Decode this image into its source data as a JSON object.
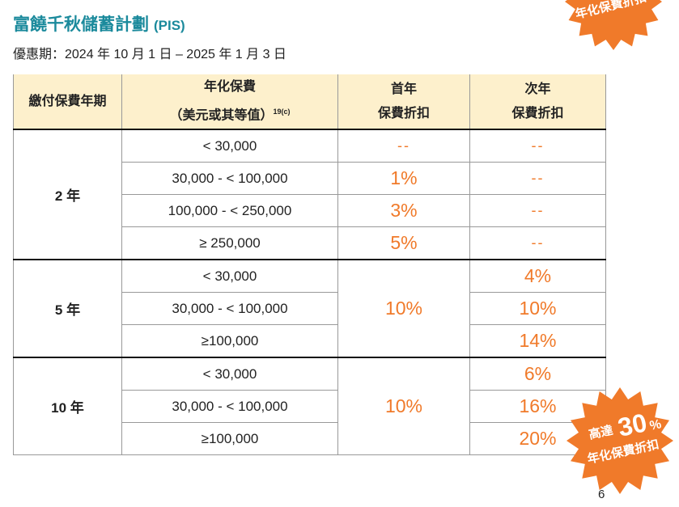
{
  "header": {
    "title": "富饒千秋儲蓄計劃",
    "title_suffix": "(PIS)",
    "subtitle": "優惠期：2024 年 10 月 1 日 – 2025 年 1 月 3 日"
  },
  "table": {
    "headers": [
      {
        "lines": [
          "繳付保費年期"
        ]
      },
      {
        "lines": [
          "年化保費",
          "（美元或其等值）"
        ],
        "note": "19(c)"
      },
      {
        "lines": [
          "首年",
          "保費折扣"
        ]
      },
      {
        "lines": [
          "次年",
          "保費折扣"
        ]
      }
    ],
    "groups": [
      {
        "term": "2 年",
        "rows": [
          {
            "premium": "< 30,000",
            "first": "--",
            "second": "--"
          },
          {
            "premium": "30,000 - < 100,000",
            "first": "1%",
            "second": "--"
          },
          {
            "premium": "100,000 - < 250,000",
            "first": "3%",
            "second": "--"
          },
          {
            "premium": "≥ 250,000",
            "first": "5%",
            "second": "--"
          }
        ]
      },
      {
        "term": "5 年",
        "first": "10%",
        "rows": [
          {
            "premium": "< 30,000",
            "second": "4%"
          },
          {
            "premium": "30,000 - < 100,000",
            "second": "10%"
          },
          {
            "premium": "≥100,000",
            "second": "14%"
          }
        ]
      },
      {
        "term": "10 年",
        "first": "10%",
        "rows": [
          {
            "premium": "< 30,000",
            "second": "6%"
          },
          {
            "premium": "30,000 - < 100,000",
            "second": "16%"
          },
          {
            "premium": "≥100,000",
            "second": "20%"
          }
        ]
      }
    ]
  },
  "badge_top": {
    "caption": "年化保費折扣"
  },
  "badge_bottom": {
    "prefix": "高達",
    "value": "30",
    "unit": "%",
    "caption": "年化保費折扣"
  },
  "page_number": "6"
}
